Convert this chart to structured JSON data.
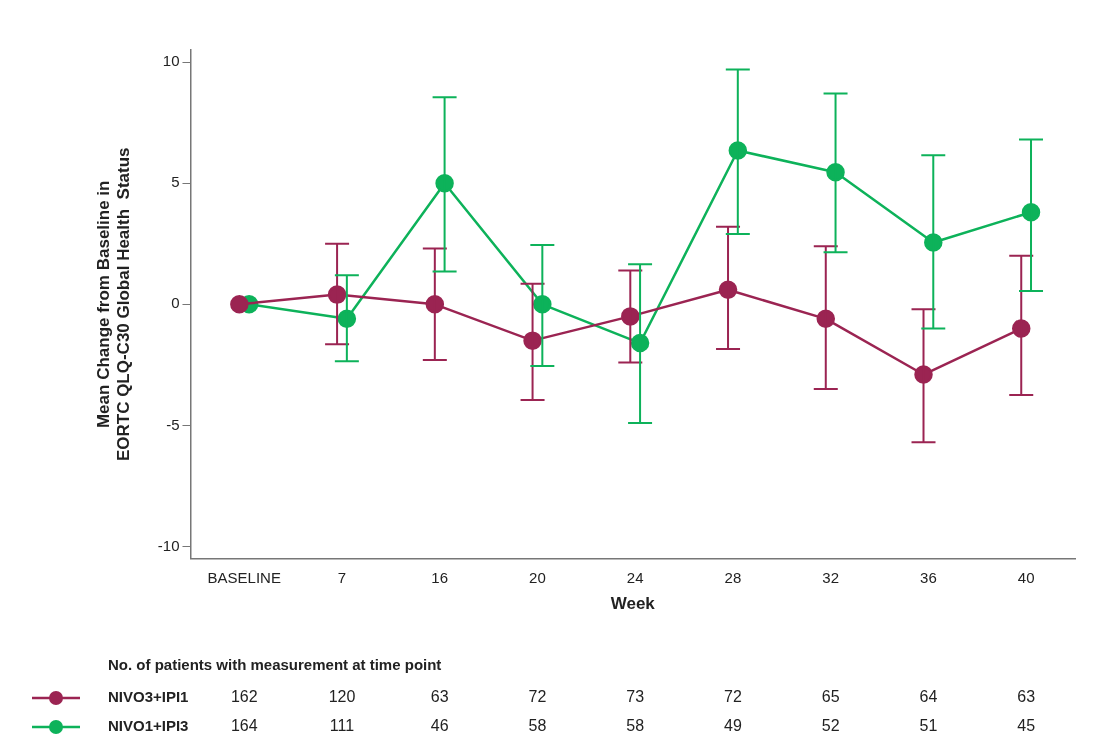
{
  "chart_data": {
    "type": "line",
    "xlabel": "Week",
    "ylabel": "Mean Change from Baseline in\nEORTC QLQ-C30 Global Health  Status",
    "categories": [
      "BASELINE",
      "7",
      "16",
      "20",
      "24",
      "28",
      "32",
      "36",
      "40"
    ],
    "ylim": [
      -10.5,
      10.5
    ],
    "yticks": [
      -10,
      -5,
      0,
      5,
      10
    ],
    "grid": false,
    "legend": "bottom left",
    "marker": "circle",
    "line_style": "solid",
    "series": [
      {
        "name": "NIVO3+IPI1",
        "color": "#9b2452",
        "values": [
          0,
          0.4,
          0,
          -1.5,
          -0.5,
          0.6,
          -0.6,
          -2.9,
          -1
        ],
        "errors": [
          null,
          [
            -1.65,
            2.5
          ],
          [
            -2.3,
            2.3
          ],
          [
            -3.95,
            0.85
          ],
          [
            -2.4,
            1.4
          ],
          [
            -1.85,
            3.2
          ],
          [
            -3.5,
            2.4
          ],
          [
            -5.7,
            -0.2
          ],
          [
            -3.75,
            2.0
          ]
        ]
      },
      {
        "name": "NIVO1+IPI3",
        "color": "#0db25a",
        "values": [
          0,
          -0.6,
          5.0,
          0,
          -1.6,
          6.35,
          5.45,
          2.55,
          3.8
        ],
        "errors": [
          null,
          [
            -2.35,
            1.2
          ],
          [
            1.35,
            8.55
          ],
          [
            -2.55,
            2.45
          ],
          [
            -4.9,
            1.65
          ],
          [
            2.9,
            9.7
          ],
          [
            2.15,
            8.7
          ],
          [
            -1.0,
            6.15
          ],
          [
            0.55,
            6.8
          ]
        ]
      }
    ],
    "annotations": [
      "No. of patients with measurement at time point",
      "162",
      "120",
      "63",
      "72",
      "73",
      "72",
      "65",
      "64",
      "63",
      "164",
      "111",
      "46",
      "58",
      "58",
      "49",
      "52",
      "51",
      "45"
    ]
  }
}
